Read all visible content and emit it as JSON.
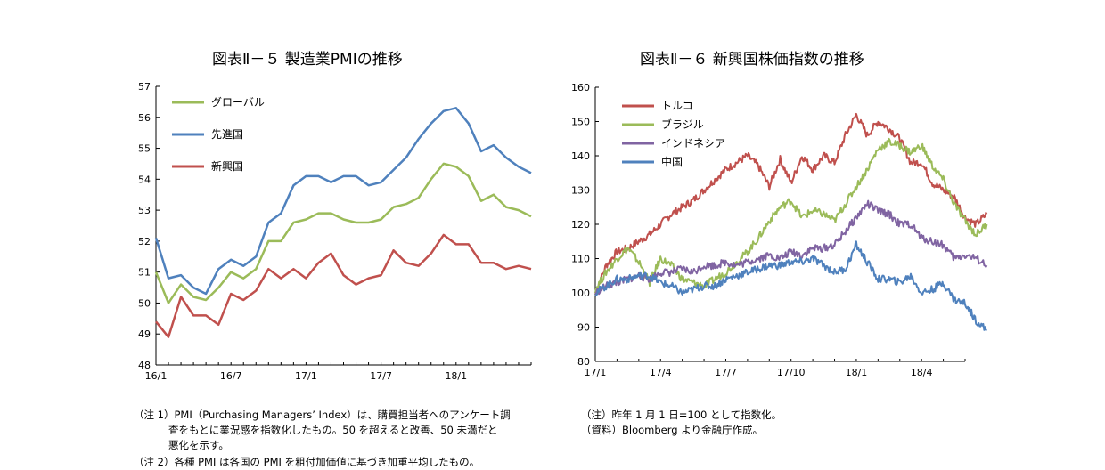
{
  "left": {
    "title": "図表Ⅱ－５ 製造業PMIの推移",
    "notes": [
      "（注 1）PMI（Purchasing Managers’ Index）は、購買担当者へのアンケート調",
      "査をもとに業況感を指数化したもの。50 を超えると改善、50 未満だと",
      "悪化を示す。",
      "（注 2）各種 PMI は各国の PMI を粗付加価値に基づき加重平均したもの。"
    ]
  },
  "right": {
    "title": "図表Ⅱ－６ 新興国株価指数の推移",
    "notes": [
      "（注）昨年 1 月 1 日=100 として指数化。",
      "（資料）Bloomberg より金融庁作成。"
    ]
  },
  "chart_data": [
    {
      "type": "line",
      "title": "図表Ⅱ－５ 製造業PMIの推移",
      "ylim": [
        48,
        57
      ],
      "yticks": [
        "48",
        "49",
        "50",
        "51",
        "52",
        "53",
        "54",
        "55",
        "56",
        "57"
      ],
      "xtick_labels": [
        "16/1",
        "16/7",
        "17/1",
        "17/7",
        "18/1"
      ],
      "xtick_index": [
        0,
        6,
        12,
        18,
        24
      ],
      "n_months": 31,
      "legend_position": "top-left",
      "grid": false,
      "series": [
        {
          "name": "グローバル",
          "color": "#9BBB59",
          "values": [
            51.0,
            50.0,
            50.6,
            50.2,
            50.1,
            50.5,
            51.0,
            50.8,
            51.1,
            52.0,
            52.0,
            52.6,
            52.7,
            52.9,
            52.9,
            52.7,
            52.6,
            52.6,
            52.7,
            53.1,
            53.2,
            53.4,
            54.0,
            54.5,
            54.4,
            54.1,
            53.3,
            53.5,
            53.1,
            53.0,
            52.8
          ]
        },
        {
          "name": "先進国",
          "color": "#4F81BD",
          "values": [
            52.1,
            50.8,
            50.9,
            50.5,
            50.3,
            51.1,
            51.4,
            51.2,
            51.5,
            52.6,
            52.9,
            53.8,
            54.1,
            54.1,
            53.9,
            54.1,
            54.1,
            53.8,
            53.9,
            54.3,
            54.7,
            55.3,
            55.8,
            56.2,
            56.3,
            55.8,
            54.9,
            55.1,
            54.7,
            54.4,
            54.2
          ]
        },
        {
          "name": "新興国",
          "color": "#C0504D",
          "values": [
            49.4,
            48.9,
            50.2,
            49.6,
            49.6,
            49.3,
            50.3,
            50.1,
            50.4,
            51.1,
            50.8,
            51.1,
            50.8,
            51.3,
            51.6,
            50.9,
            50.6,
            50.8,
            50.9,
            51.7,
            51.3,
            51.2,
            51.6,
            52.2,
            51.9,
            51.9,
            51.3,
            51.3,
            51.1,
            51.2,
            51.1
          ]
        }
      ]
    },
    {
      "type": "line",
      "title": "図表Ⅱ－６ 新興国株価指数の推移",
      "ylim": [
        80,
        160
      ],
      "yticks": [
        "80",
        "90",
        "100",
        "110",
        "120",
        "130",
        "140",
        "150",
        "160"
      ],
      "xtick_labels": [
        "17/1",
        "17/4",
        "17/7",
        "17/10",
        "18/1",
        "18/4"
      ],
      "xtick_index": [
        0,
        3,
        6,
        9,
        12,
        15
      ],
      "n_months": 18,
      "legend_position": "top-left",
      "grid": false,
      "series": [
        {
          "name": "トルコ",
          "color": "#C0504D",
          "x": [
            0,
            0.5,
            1,
            1.5,
            2,
            2.5,
            3,
            3.5,
            4,
            4.5,
            5,
            5.5,
            6,
            6.5,
            7,
            7.5,
            8,
            8.5,
            9,
            9.5,
            10,
            10.5,
            11,
            11.5,
            12,
            12.5,
            13,
            13.5,
            14,
            14.5,
            15,
            15.5,
            16,
            16.5,
            17,
            17.5,
            18
          ],
          "values": [
            100,
            108,
            112,
            113,
            115,
            117,
            120,
            123,
            125,
            127,
            130,
            133,
            136,
            138,
            140,
            137,
            131,
            139,
            132,
            140,
            136,
            140,
            138,
            146,
            152,
            146,
            150,
            148,
            145,
            138,
            138,
            132,
            130,
            128,
            122,
            120,
            123
          ]
        },
        {
          "name": "ブラジル",
          "color": "#9BBB59",
          "x": [
            0,
            0.5,
            1,
            1.5,
            2,
            2.5,
            3,
            3.5,
            4,
            4.5,
            5,
            5.5,
            6,
            6.5,
            7,
            7.5,
            8,
            8.5,
            9,
            9.5,
            10,
            10.5,
            11,
            11.5,
            12,
            12.5,
            13,
            13.5,
            14,
            14.5,
            15,
            15.5,
            16,
            16.5,
            17,
            17.5,
            18
          ],
          "values": [
            101,
            106,
            110,
            113,
            109,
            103,
            110,
            108,
            104,
            103,
            102,
            104,
            106,
            109,
            112,
            116,
            121,
            125,
            127,
            122,
            124,
            123,
            121,
            126,
            131,
            136,
            142,
            144,
            143,
            141,
            143,
            137,
            133,
            126,
            121,
            117,
            120
          ]
        },
        {
          "name": "インドネシア",
          "color": "#8064A2",
          "x": [
            0,
            0.5,
            1,
            1.5,
            2,
            2.5,
            3,
            3.5,
            4,
            4.5,
            5,
            5.5,
            6,
            6.5,
            7,
            7.5,
            8,
            8.5,
            9,
            9.5,
            10,
            10.5,
            11,
            11.5,
            12,
            12.5,
            13,
            13.5,
            14,
            14.5,
            15,
            15.5,
            16,
            16.5,
            17,
            17.5,
            18
          ],
          "values": [
            100,
            102,
            103,
            104,
            105,
            104,
            106,
            106,
            107,
            106,
            108,
            108,
            109,
            108,
            109,
            110,
            111,
            110,
            112,
            111,
            113,
            113,
            114,
            118,
            122,
            126,
            124,
            123,
            120,
            120,
            116,
            115,
            114,
            110,
            111,
            110,
            108
          ]
        },
        {
          "name": "中国",
          "color": "#4F81BD",
          "x": [
            0,
            0.5,
            1,
            1.5,
            2,
            2.5,
            3,
            3.5,
            4,
            4.5,
            5,
            5.5,
            6,
            6.5,
            7,
            7.5,
            8,
            8.5,
            9,
            9.5,
            10,
            10.5,
            11,
            11.5,
            12,
            12.5,
            13,
            13.5,
            14,
            14.5,
            15,
            15.5,
            16,
            16.5,
            17,
            17.5,
            18
          ],
          "values": [
            100,
            102,
            104,
            104,
            105,
            105,
            103,
            102,
            100,
            101,
            102,
            102,
            104,
            105,
            106,
            107,
            108,
            108,
            109,
            109,
            110,
            108,
            106,
            107,
            114,
            109,
            104,
            104,
            103,
            105,
            100,
            101,
            103,
            98,
            97,
            92,
            89
          ]
        }
      ]
    }
  ]
}
